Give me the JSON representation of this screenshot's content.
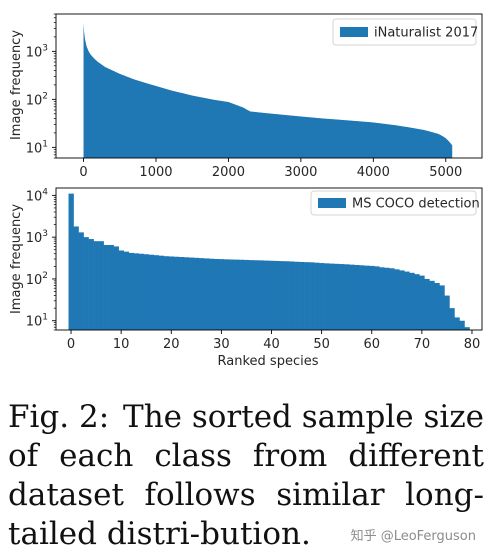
{
  "chart_data": [
    {
      "type": "bar",
      "ylabel": "Image frequency",
      "xlabel": "",
      "yscale": "log",
      "ylim": [
        6,
        6000
      ],
      "xlim": [
        -380,
        5500
      ],
      "xticks": [
        0,
        1000,
        2000,
        3000,
        4000,
        5000
      ],
      "ytick_labels": [
        "10",
        "10",
        "10"
      ],
      "ytick_exponents": [
        "1",
        "2",
        "3"
      ],
      "ytick_values": [
        10,
        100,
        1000
      ],
      "legend": {
        "label": "iNaturalist 2017",
        "position": "top-right"
      },
      "color": "#1f77b4",
      "grid": false,
      "curve_rank": [
        0,
        8,
        20,
        40,
        70,
        100,
        150,
        200,
        300,
        400,
        500,
        700,
        900,
        1000,
        1200,
        1500,
        1800,
        2000,
        2200,
        2300,
        2500,
        2800,
        3000,
        3300,
        3500,
        3800,
        4000,
        4300,
        4500,
        4700,
        4800,
        4900,
        4960,
        5000,
        5030,
        5060,
        5089
      ],
      "curve_frequency": [
        3900,
        2500,
        1800,
        1300,
        1000,
        850,
        700,
        600,
        470,
        400,
        340,
        260,
        210,
        190,
        155,
        120,
        98,
        88,
        68,
        56,
        52,
        47,
        44,
        40,
        38,
        35,
        33,
        29,
        26,
        23,
        21,
        19,
        17,
        15.5,
        14,
        12.5,
        11
      ]
    },
    {
      "type": "bar",
      "ylabel": "Image frequency",
      "xlabel": "Ranked species",
      "yscale": "log",
      "ylim": [
        6,
        15000
      ],
      "xlim": [
        -3,
        82
      ],
      "xticks": [
        0,
        10,
        20,
        30,
        40,
        50,
        60,
        70,
        80
      ],
      "ytick_labels": [
        "10",
        "10",
        "10",
        "10"
      ],
      "ytick_exponents": [
        "1",
        "2",
        "3",
        "4"
      ],
      "ytick_values": [
        10,
        100,
        1000,
        10000
      ],
      "legend": {
        "label": "MS COCO detection",
        "position": "top-right"
      },
      "color": "#1f77b4",
      "grid": false,
      "categories": [
        0,
        1,
        2,
        3,
        4,
        5,
        6,
        7,
        8,
        9,
        10,
        11,
        12,
        13,
        14,
        15,
        16,
        17,
        18,
        19,
        20,
        21,
        22,
        23,
        24,
        25,
        26,
        27,
        28,
        29,
        30,
        31,
        32,
        33,
        34,
        35,
        36,
        37,
        38,
        39,
        40,
        41,
        42,
        43,
        44,
        45,
        46,
        47,
        48,
        49,
        50,
        51,
        52,
        53,
        54,
        55,
        56,
        57,
        58,
        59,
        60,
        61,
        62,
        63,
        64,
        65,
        66,
        67,
        68,
        69,
        70,
        71,
        72,
        73,
        74,
        75,
        76,
        77,
        78,
        79
      ],
      "values": [
        11000,
        1800,
        1300,
        1000,
        900,
        800,
        800,
        650,
        650,
        600,
        480,
        450,
        420,
        410,
        400,
        390,
        380,
        370,
        360,
        350,
        345,
        340,
        335,
        330,
        325,
        320,
        315,
        310,
        305,
        300,
        298,
        295,
        292,
        290,
        288,
        285,
        282,
        280,
        278,
        275,
        272,
        270,
        267,
        265,
        262,
        258,
        255,
        252,
        250,
        245,
        240,
        236,
        233,
        230,
        227,
        224,
        220,
        216,
        212,
        208,
        205,
        200,
        190,
        185,
        180,
        170,
        160,
        150,
        140,
        130,
        120,
        100,
        90,
        80,
        70,
        40,
        20,
        12,
        10,
        7
      ]
    }
  ],
  "caption": {
    "number": "Fig. 2:",
    "text": "The sorted sample size of each class from different dataset follows similar long-tailed distri-bution."
  },
  "watermark": "知乎 @LeoFerguson"
}
